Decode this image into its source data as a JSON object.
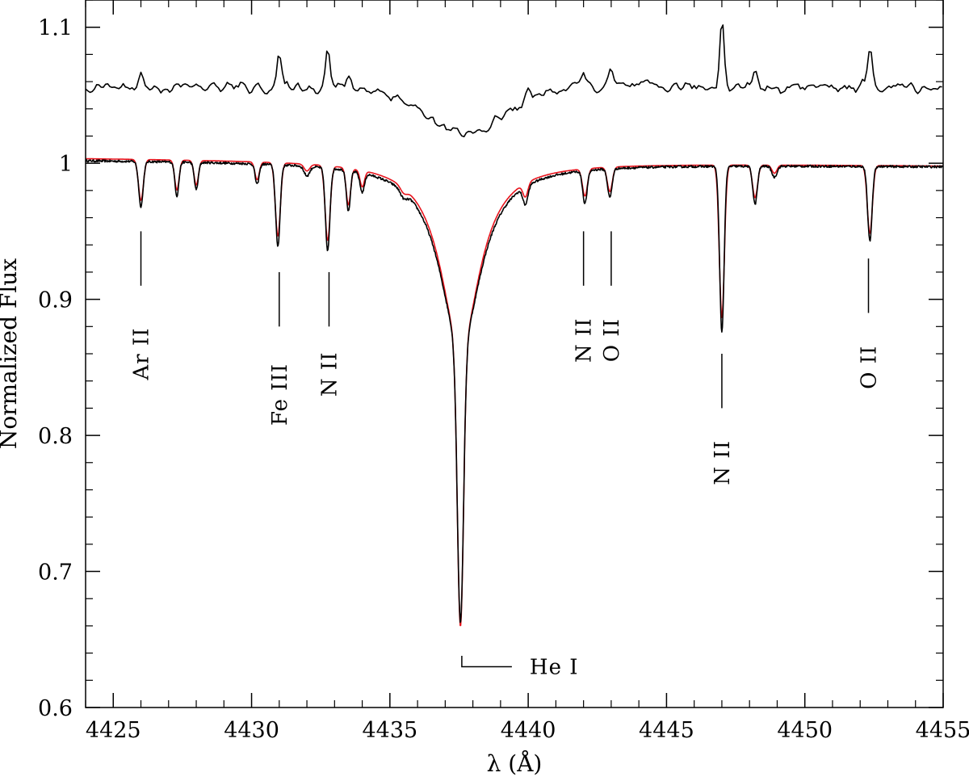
{
  "chart_data": {
    "type": "line",
    "title": "",
    "xlabel": "λ (Å)",
    "ylabel": "Normalized Flux",
    "xlim": [
      4424,
      4455
    ],
    "ylim": [
      0.6,
      1.12
    ],
    "grid": false,
    "x_ticks": [
      4425,
      4430,
      4435,
      4440,
      4445,
      4450,
      4455
    ],
    "x_tick_labels": [
      "4425",
      "4430",
      "4435",
      "4440",
      "4445",
      "4450",
      "4455"
    ],
    "y_ticks": [
      0.6,
      0.7,
      0.8,
      0.9,
      1.0,
      1.1
    ],
    "y_tick_labels": [
      "0.6",
      "0.7",
      "0.8",
      "0.9",
      "1",
      "1.1"
    ],
    "series": [
      {
        "color": "#000000",
        "continuum": 1.0,
        "continuum_slope_per_A": -0.00015,
        "lines": [
          {
            "x": 4426.0,
            "depth": 0.033,
            "width": 0.08
          },
          {
            "x": 4427.3,
            "depth": 0.025,
            "width": 0.07
          },
          {
            "x": 4428.0,
            "depth": 0.02,
            "width": 0.07
          },
          {
            "x": 4430.2,
            "depth": 0.015,
            "width": 0.07
          },
          {
            "x": 4430.95,
            "depth": 0.06,
            "width": 0.08
          },
          {
            "x": 4432.0,
            "depth": 0.007,
            "width": 0.1
          },
          {
            "x": 4432.75,
            "depth": 0.061,
            "width": 0.08
          },
          {
            "x": 4433.5,
            "depth": 0.03,
            "width": 0.07
          },
          {
            "x": 4434.0,
            "depth": 0.014,
            "width": 0.08
          },
          {
            "x": 4435.5,
            "depth": 0.005,
            "width": 0.12
          },
          {
            "x": 4437.55,
            "depth": 0.338,
            "width": 0.11,
            "wing": 0.9
          },
          {
            "x": 4439.9,
            "depth": 0.013,
            "width": 0.09
          },
          {
            "x": 4442.05,
            "depth": 0.024,
            "width": 0.08
          },
          {
            "x": 4442.95,
            "depth": 0.021,
            "width": 0.08
          },
          {
            "x": 4447.0,
            "depth": 0.122,
            "width": 0.08
          },
          {
            "x": 4448.2,
            "depth": 0.028,
            "width": 0.08
          },
          {
            "x": 4448.9,
            "depth": 0.008,
            "width": 0.09
          },
          {
            "x": 4452.35,
            "depth": 0.055,
            "width": 0.08
          }
        ]
      },
      {
        "color": "#e8141d",
        "continuum": 1.001,
        "continuum_slope_per_A": -0.00018,
        "lines": [
          {
            "x": 4426.0,
            "depth": 0.03,
            "width": 0.09
          },
          {
            "x": 4427.3,
            "depth": 0.022,
            "width": 0.08
          },
          {
            "x": 4428.0,
            "depth": 0.018,
            "width": 0.08
          },
          {
            "x": 4430.2,
            "depth": 0.013,
            "width": 0.08
          },
          {
            "x": 4430.95,
            "depth": 0.054,
            "width": 0.09
          },
          {
            "x": 4432.0,
            "depth": 0.005,
            "width": 0.1
          },
          {
            "x": 4432.75,
            "depth": 0.055,
            "width": 0.09
          },
          {
            "x": 4433.5,
            "depth": 0.027,
            "width": 0.08
          },
          {
            "x": 4434.0,
            "depth": 0.012,
            "width": 0.08
          },
          {
            "x": 4435.5,
            "depth": 0.004,
            "width": 0.12
          },
          {
            "x": 4437.55,
            "depth": 0.342,
            "width": 0.11,
            "wing": 0.85
          },
          {
            "x": 4439.9,
            "depth": 0.01,
            "width": 0.09
          },
          {
            "x": 4442.05,
            "depth": 0.02,
            "width": 0.09
          },
          {
            "x": 4442.95,
            "depth": 0.018,
            "width": 0.09
          },
          {
            "x": 4447.0,
            "depth": 0.112,
            "width": 0.09
          },
          {
            "x": 4448.2,
            "depth": 0.024,
            "width": 0.09
          },
          {
            "x": 4448.9,
            "depth": 0.006,
            "width": 0.09
          },
          {
            "x": 4452.35,
            "depth": 0.05,
            "width": 0.09
          }
        ]
      },
      {
        "color": "#000000",
        "continuum": 1.056,
        "dip": {
          "x": 4437.7,
          "depth": 0.035,
          "width": 1.4
        },
        "emissions": [
          {
            "x": 4426.0,
            "height": 0.01
          },
          {
            "x": 4431.0,
            "height": 0.022
          },
          {
            "x": 4432.75,
            "height": 0.03
          },
          {
            "x": 4433.5,
            "height": 0.008
          },
          {
            "x": 4440.0,
            "height": 0.006
          },
          {
            "x": 4442.0,
            "height": 0.012
          },
          {
            "x": 4443.0,
            "height": 0.012
          },
          {
            "x": 4447.0,
            "height": 0.052
          },
          {
            "x": 4448.2,
            "height": 0.014
          },
          {
            "x": 4452.35,
            "height": 0.028
          }
        ]
      }
    ],
    "line_ids": [
      {
        "label": "Ar II",
        "x": 4426.0,
        "marker_top": 0.95,
        "marker_bottom": 0.91,
        "text_y": 0.86
      },
      {
        "label": "Fe III",
        "x": 4431.0,
        "marker_top": 0.92,
        "marker_bottom": 0.88,
        "text_y": 0.83
      },
      {
        "label": "N II",
        "x": 4432.8,
        "marker_top": 0.92,
        "marker_bottom": 0.88,
        "text_y": 0.845
      },
      {
        "label": "N II",
        "x": 4442.0,
        "marker_top": 0.95,
        "marker_bottom": 0.91,
        "text_y": 0.87
      },
      {
        "label": "O II",
        "x": 4443.0,
        "marker_top": 0.95,
        "marker_bottom": 0.91,
        "text_y": 0.87
      },
      {
        "label": "N II",
        "x": 4447.0,
        "marker_top": 0.86,
        "marker_bottom": 0.82,
        "text_y": 0.78
      },
      {
        "label": "O II",
        "x": 4452.3,
        "marker_top": 0.93,
        "marker_bottom": 0.89,
        "text_y": 0.85
      }
    ],
    "he_i_label": {
      "label": "He I",
      "x": 4437.6,
      "y": 0.63
    }
  }
}
